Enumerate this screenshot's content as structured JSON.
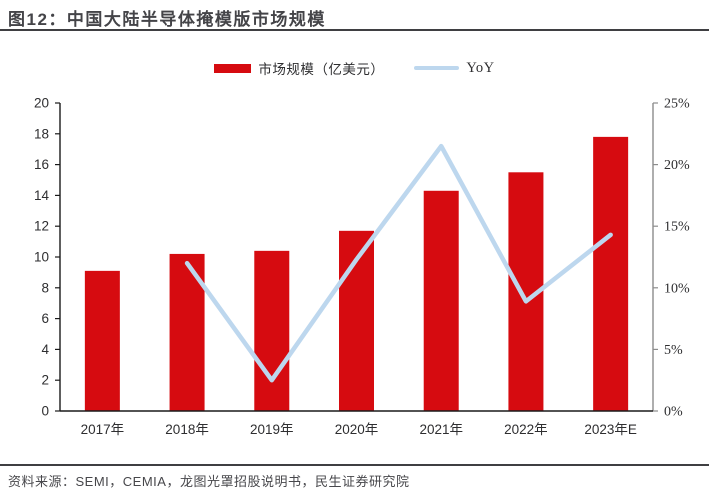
{
  "title": "图12：中国大陆半导体掩模版市场规模",
  "source": "资料来源：SEMI，CEMIA，龙图光罩招股说明书，民生证券研究院",
  "legend": {
    "bar_label": "市场规模（亿美元）",
    "line_label": "YoY"
  },
  "colors": {
    "bar_red": "#d60b10",
    "line_blue": "#bdd7ee",
    "axis_dark": "#1a1a1a",
    "axis_gray": "#8c8c8c",
    "text_dark": "#2e2e30",
    "rule_dark": "#3f3f42"
  },
  "chart_data": {
    "type": "bar",
    "subtype": "bar+line-combo",
    "title": "中国大陆半导体掩模版市场规模",
    "categories": [
      "2017年",
      "2018年",
      "2019年",
      "2020年",
      "2021年",
      "2022年",
      "2023年E"
    ],
    "series": [
      {
        "name": "市场规模（亿美元）",
        "type": "bar",
        "axis": "left",
        "values": [
          9.1,
          10.2,
          10.4,
          11.7,
          14.3,
          15.5,
          17.8
        ]
      },
      {
        "name": "YoY",
        "type": "line",
        "axis": "right",
        "values": [
          null,
          12.0,
          2.5,
          12.3,
          21.5,
          8.9,
          14.3
        ]
      }
    ],
    "left_axis": {
      "min": 0,
      "max": 20,
      "step": 2,
      "tick_labels": [
        "0",
        "2",
        "4",
        "6",
        "8",
        "10",
        "12",
        "14",
        "16",
        "18",
        "20"
      ]
    },
    "right_axis": {
      "min": 0,
      "max": 25,
      "step": 5,
      "tick_labels": [
        "0%",
        "5%",
        "10%",
        "15%",
        "20%",
        "25%"
      ]
    },
    "grid": false,
    "legend_position": "top"
  }
}
